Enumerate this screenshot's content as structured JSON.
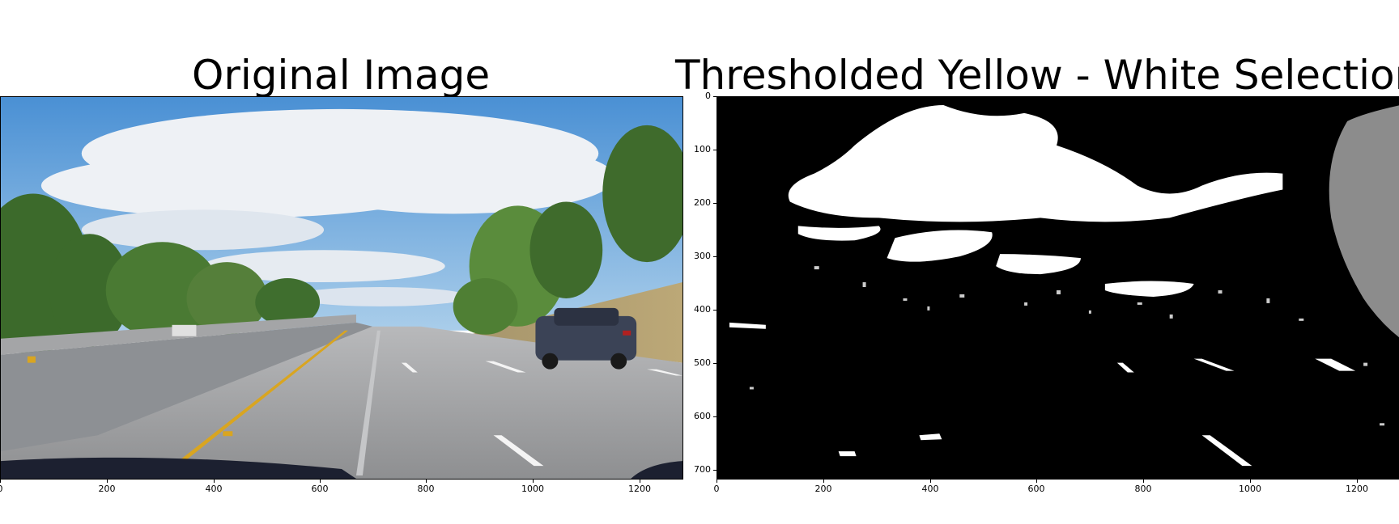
{
  "figure": {
    "left_title": "Original Image",
    "right_title": "Thresholded Yellow - White Selection"
  },
  "left_axes": {
    "x_ticks": [
      "0",
      "200",
      "400",
      "600",
      "800",
      "1000",
      "1200"
    ]
  },
  "right_axes": {
    "x_ticks": [
      "0",
      "200",
      "400",
      "600",
      "800",
      "1000",
      "1200"
    ],
    "y_ticks": [
      "0",
      "100",
      "200",
      "300",
      "400",
      "500",
      "600",
      "700"
    ]
  },
  "colors": {
    "sky": "#5fa3dc",
    "cloud": "#e8edf2",
    "road": "#9a9b9d",
    "lane_yellow": "#d9a520",
    "tree": "#3f6b2c",
    "mask_white": "#ffffff",
    "mask_black": "#000000"
  }
}
